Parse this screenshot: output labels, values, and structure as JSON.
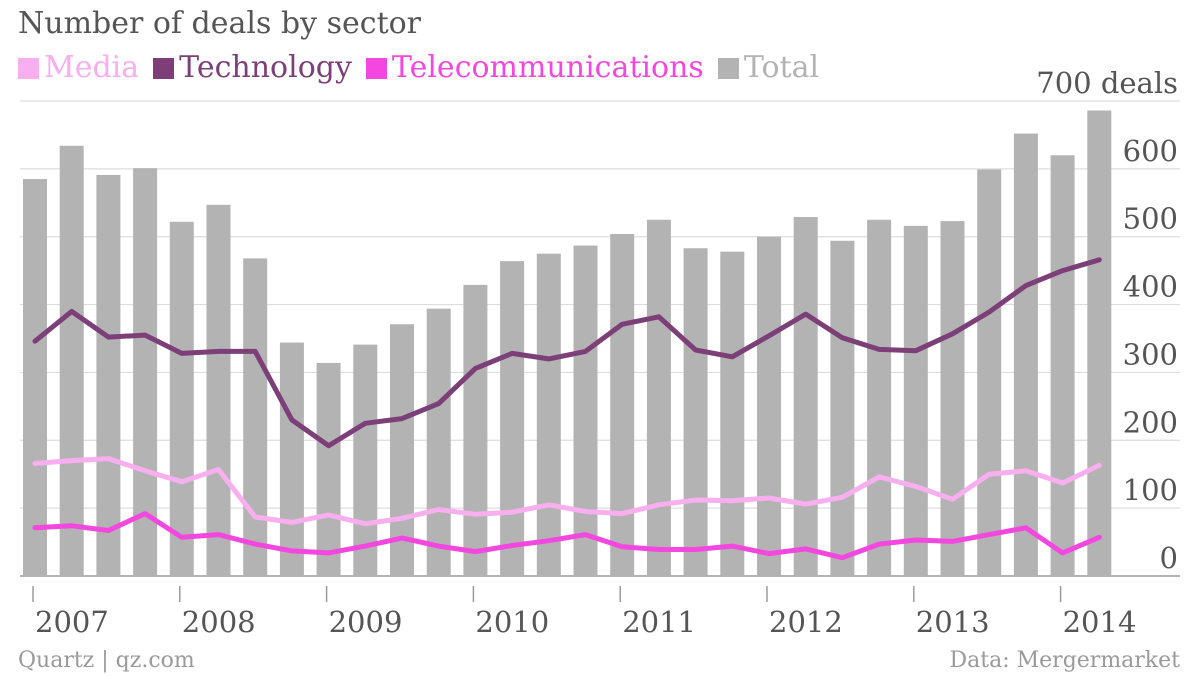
{
  "chart_data": {
    "type": "bar",
    "title": "Number of deals by sector",
    "y_unit_label": "700 deals",
    "ylim": [
      0,
      700
    ],
    "yticks": [
      0,
      100,
      200,
      300,
      400,
      500,
      600
    ],
    "grid": true,
    "legend_position": "top-left",
    "x_start": "2007",
    "x_interval": "quarter",
    "xtick_labels": [
      "2007",
      "2008",
      "2009",
      "2010",
      "2011",
      "2012",
      "2013",
      "2014"
    ],
    "legend": [
      {
        "name": "Media",
        "color": "#f9aef0"
      },
      {
        "name": "Technology",
        "color": "#7c3f78"
      },
      {
        "name": "Telecommunications",
        "color": "#f447e0"
      },
      {
        "name": "Total",
        "color": "#b3b3b3"
      }
    ],
    "series": [
      {
        "name": "Total",
        "kind": "bar",
        "color": "#b3b3b3",
        "values": [
          585,
          634,
          591,
          601,
          522,
          547,
          468,
          344,
          314,
          341,
          371,
          394,
          429,
          464,
          475,
          487,
          504,
          525,
          483,
          478,
          500,
          529,
          494,
          525,
          516,
          523,
          599,
          652,
          620,
          686
        ]
      },
      {
        "name": "Technology",
        "kind": "line",
        "color": "#7c3f78",
        "values": [
          346,
          390,
          352,
          355,
          328,
          331,
          331,
          230,
          192,
          225,
          232,
          254,
          306,
          328,
          320,
          331,
          371,
          382,
          333,
          323,
          354,
          386,
          351,
          334,
          332,
          357,
          389,
          428,
          450,
          466
        ]
      },
      {
        "name": "Media",
        "kind": "line",
        "color": "#f9aef0",
        "values": [
          166,
          170,
          173,
          155,
          139,
          157,
          87,
          79,
          90,
          77,
          85,
          98,
          91,
          94,
          105,
          95,
          92,
          105,
          112,
          111,
          115,
          106,
          116,
          146,
          132,
          113,
          150,
          155,
          137,
          163
        ]
      },
      {
        "name": "Telecommunications",
        "kind": "line",
        "color": "#f447e0",
        "values": [
          71,
          74,
          67,
          92,
          57,
          61,
          47,
          37,
          34,
          44,
          56,
          44,
          36,
          45,
          52,
          61,
          43,
          39,
          39,
          44,
          33,
          40,
          27,
          47,
          53,
          51,
          61,
          71,
          34,
          57
        ]
      }
    ]
  },
  "footer": {
    "source_left": "Quartz | qz.com",
    "source_right": "Data: Mergermarket"
  }
}
